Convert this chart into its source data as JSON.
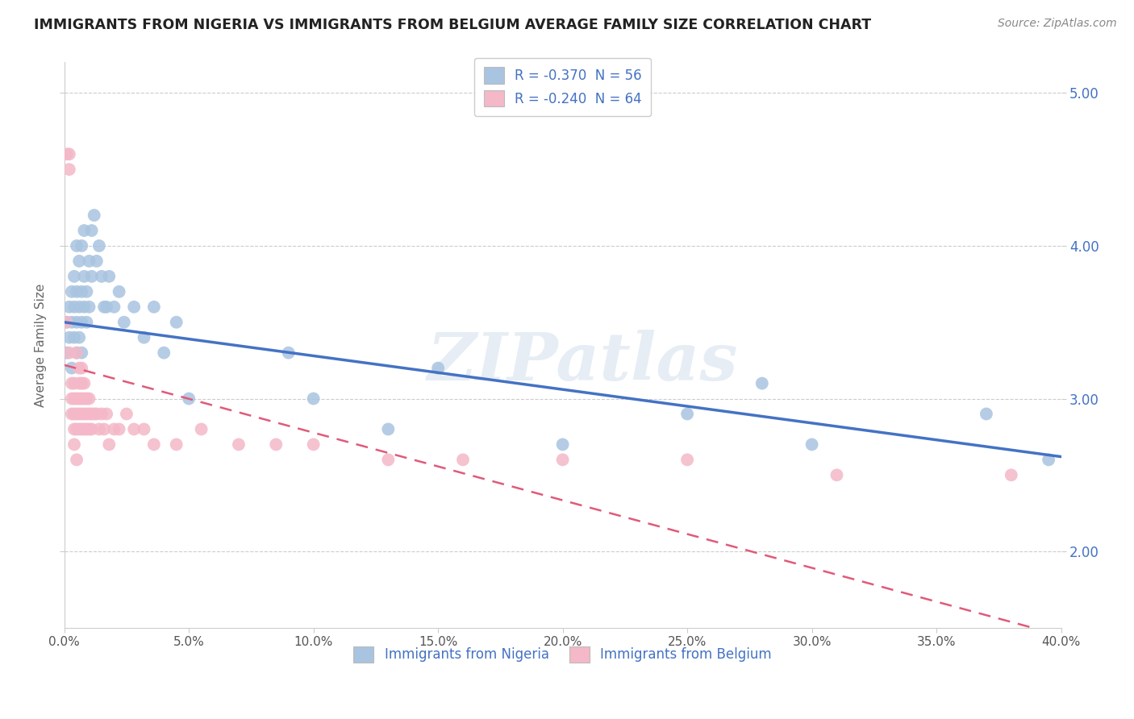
{
  "title": "IMMIGRANTS FROM NIGERIA VS IMMIGRANTS FROM BELGIUM AVERAGE FAMILY SIZE CORRELATION CHART",
  "source": "Source: ZipAtlas.com",
  "ylabel": "Average Family Size",
  "right_yticks": [
    2.0,
    3.0,
    4.0,
    5.0
  ],
  "watermark": "ZIPatlas",
  "legend_blue_label": "R = -0.370  N = 56",
  "legend_pink_label": "R = -0.240  N = 64",
  "legend_bottom_blue": "Immigrants from Nigeria",
  "legend_bottom_pink": "Immigrants from Belgium",
  "blue_color": "#a8c4e0",
  "pink_color": "#f4b8c8",
  "blue_line_color": "#4472c4",
  "pink_line_color": "#e05a7a",
  "xmin": 0.0,
  "xmax": 0.4,
  "ymin": 1.5,
  "ymax": 5.2,
  "blue_line_y0": 3.5,
  "blue_line_y1": 2.62,
  "pink_line_y0": 3.22,
  "pink_line_y1": 1.45,
  "nigeria_x": [
    0.001,
    0.001,
    0.002,
    0.002,
    0.003,
    0.003,
    0.003,
    0.004,
    0.004,
    0.004,
    0.005,
    0.005,
    0.005,
    0.005,
    0.006,
    0.006,
    0.006,
    0.007,
    0.007,
    0.007,
    0.007,
    0.008,
    0.008,
    0.008,
    0.009,
    0.009,
    0.01,
    0.01,
    0.011,
    0.011,
    0.012,
    0.013,
    0.014,
    0.015,
    0.016,
    0.017,
    0.018,
    0.02,
    0.022,
    0.024,
    0.028,
    0.032,
    0.036,
    0.04,
    0.045,
    0.05,
    0.09,
    0.1,
    0.13,
    0.15,
    0.2,
    0.25,
    0.28,
    0.3,
    0.37,
    0.395
  ],
  "nigeria_y": [
    3.3,
    3.5,
    3.4,
    3.6,
    3.2,
    3.5,
    3.7,
    3.4,
    3.6,
    3.8,
    3.3,
    3.5,
    3.7,
    4.0,
    3.4,
    3.6,
    3.9,
    3.5,
    3.7,
    4.0,
    3.3,
    3.6,
    3.8,
    4.1,
    3.5,
    3.7,
    3.6,
    3.9,
    3.8,
    4.1,
    4.2,
    3.9,
    4.0,
    3.8,
    3.6,
    3.6,
    3.8,
    3.6,
    3.7,
    3.5,
    3.6,
    3.4,
    3.6,
    3.3,
    3.5,
    3.0,
    3.3,
    3.0,
    2.8,
    3.2,
    2.7,
    2.9,
    3.1,
    2.7,
    2.9,
    2.6
  ],
  "belgium_x": [
    0.001,
    0.001,
    0.002,
    0.002,
    0.002,
    0.003,
    0.003,
    0.003,
    0.004,
    0.004,
    0.004,
    0.004,
    0.005,
    0.005,
    0.005,
    0.005,
    0.006,
    0.006,
    0.006,
    0.006,
    0.006,
    0.007,
    0.007,
    0.007,
    0.007,
    0.007,
    0.008,
    0.008,
    0.008,
    0.008,
    0.009,
    0.009,
    0.009,
    0.01,
    0.01,
    0.01,
    0.011,
    0.011,
    0.012,
    0.013,
    0.014,
    0.015,
    0.016,
    0.017,
    0.018,
    0.02,
    0.022,
    0.025,
    0.028,
    0.032,
    0.036,
    0.045,
    0.055,
    0.07,
    0.085,
    0.1,
    0.13,
    0.16,
    0.2,
    0.25,
    0.31,
    0.38,
    0.004,
    0.005
  ],
  "belgium_y": [
    3.5,
    4.6,
    4.5,
    4.6,
    3.3,
    3.1,
    3.0,
    2.9,
    3.0,
    3.1,
    2.9,
    2.8,
    3.3,
    3.0,
    2.9,
    2.8,
    3.2,
    3.1,
    3.0,
    2.9,
    2.8,
    3.1,
    3.0,
    2.9,
    2.8,
    3.2,
    3.1,
    3.0,
    2.9,
    2.8,
    3.0,
    2.9,
    2.8,
    3.0,
    2.9,
    2.8,
    2.9,
    2.8,
    2.9,
    2.9,
    2.8,
    2.9,
    2.8,
    2.9,
    2.7,
    2.8,
    2.8,
    2.9,
    2.8,
    2.8,
    2.7,
    2.7,
    2.8,
    2.7,
    2.7,
    2.7,
    2.6,
    2.6,
    2.6,
    2.6,
    2.5,
    2.5,
    2.7,
    2.6
  ]
}
